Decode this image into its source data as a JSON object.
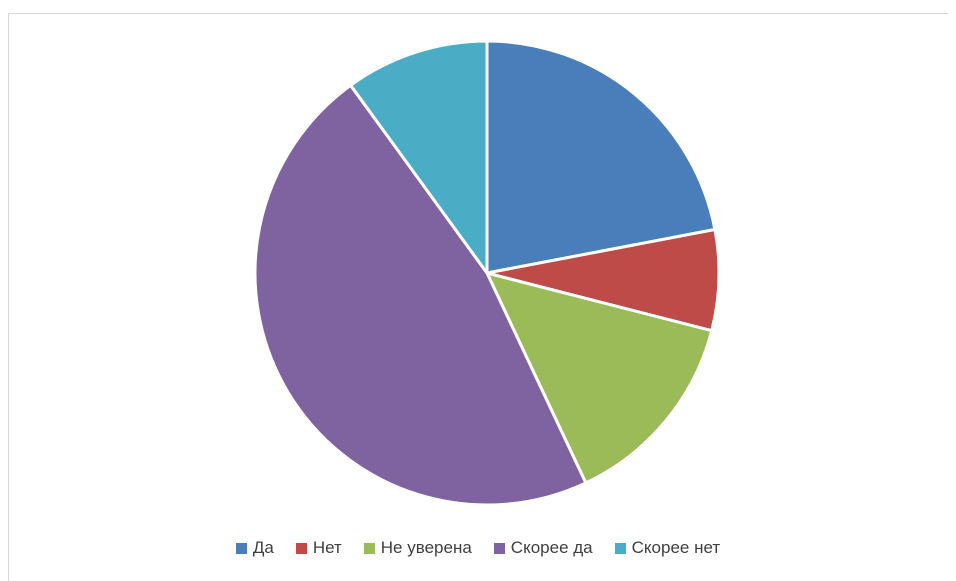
{
  "chart_data": {
    "type": "pie",
    "title": "",
    "legend_position": "bottom",
    "slices": [
      {
        "label": "Да",
        "value": 22,
        "color": "#4a7ebb"
      },
      {
        "label": "Нет",
        "value": 7,
        "color": "#be4b48"
      },
      {
        "label": "Не уверена",
        "value": 14,
        "color": "#9bbb59"
      },
      {
        "label": "Скорее да",
        "value": 47,
        "color": "#7f63a1"
      },
      {
        "label": "Скорее нет",
        "value": 10,
        "color": "#4bacc6"
      }
    ]
  }
}
